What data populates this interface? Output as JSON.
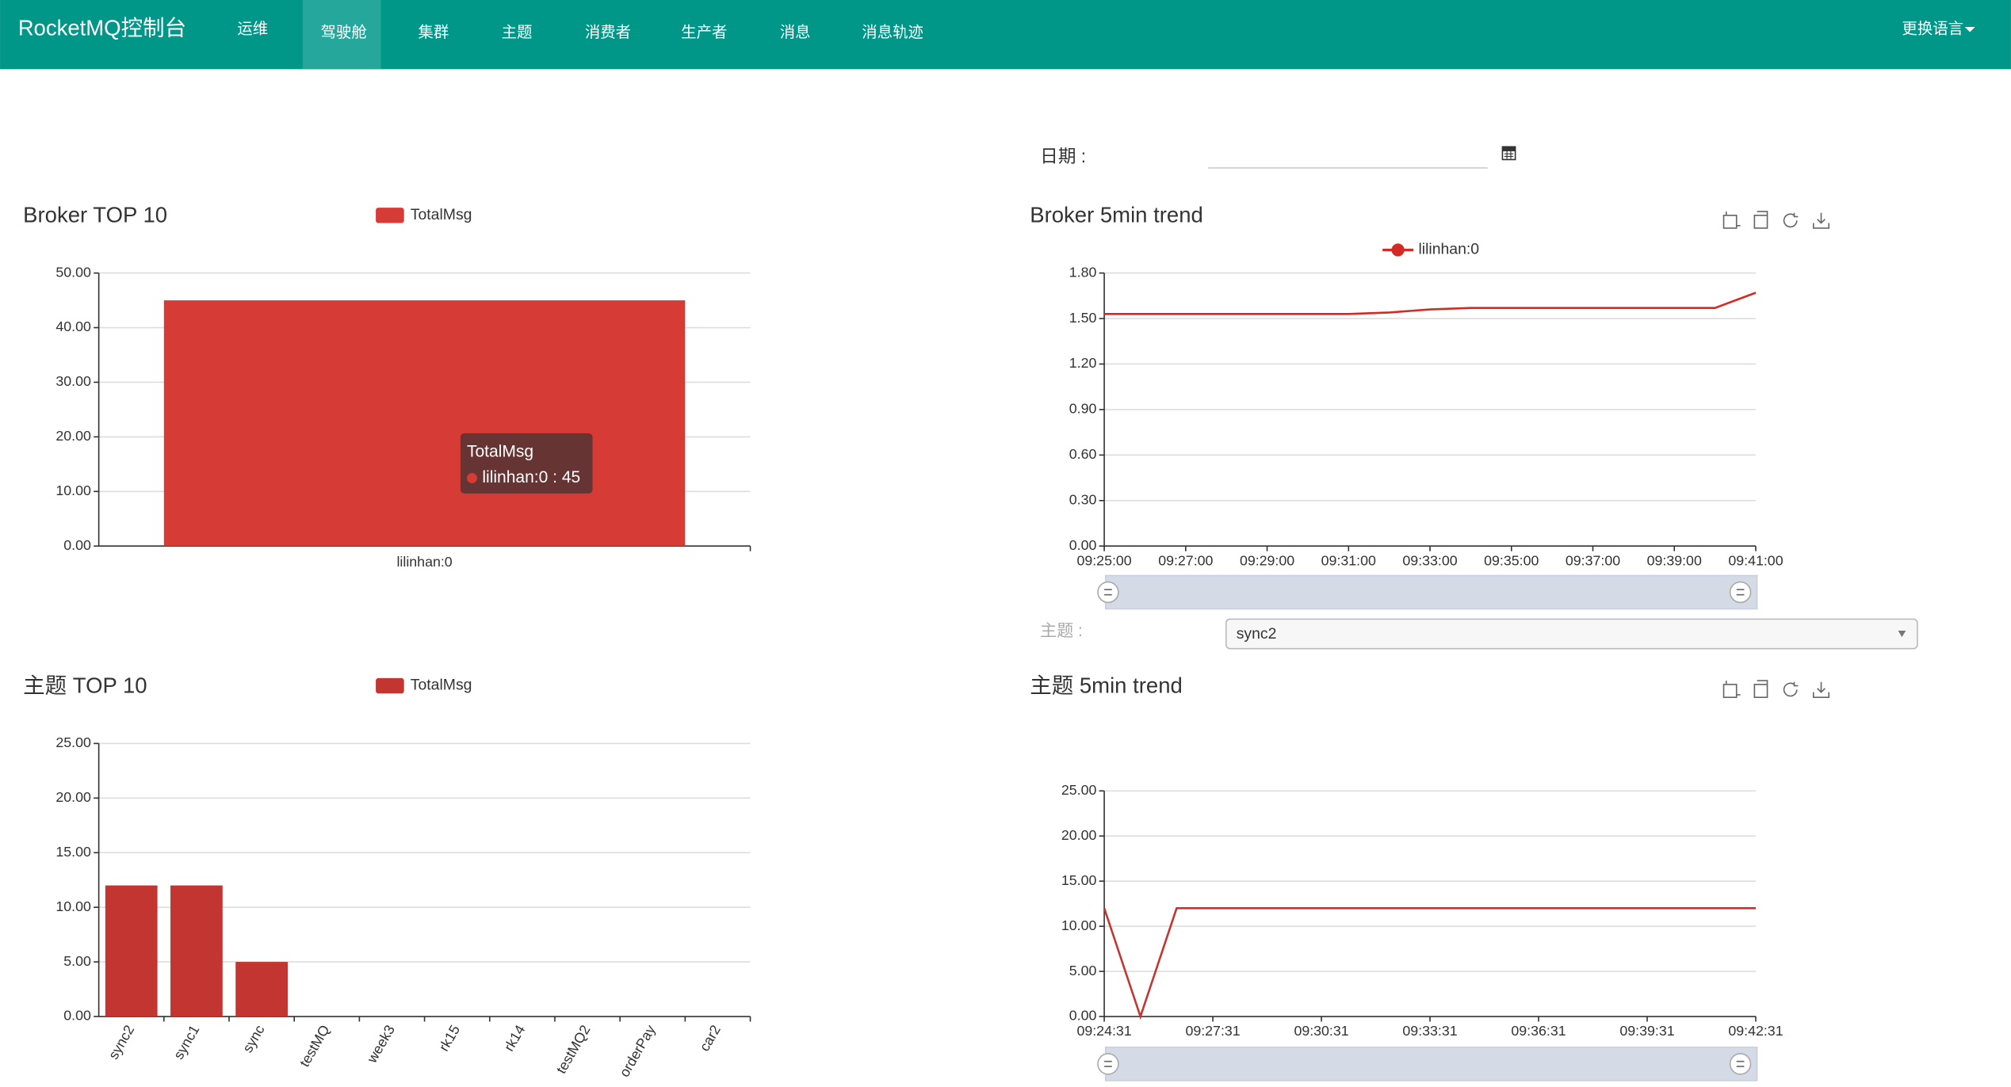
{
  "nav": {
    "brand": "RocketMQ控制台",
    "items": [
      "运维",
      "驾驶舱",
      "集群",
      "主题",
      "消费者",
      "生产者",
      "消息",
      "消息轨迹"
    ],
    "language": "更换语言"
  },
  "date_label": "日期 :",
  "topic_label": "主题 :",
  "topic_selected": "sync2",
  "tooltip": {
    "title": "TotalMsg",
    "text": "lilinhan:0 : 45"
  },
  "chart_data": [
    {
      "type": "bar",
      "title": "Broker TOP 10",
      "series": [
        {
          "name": "TotalMsg",
          "color": "#d63b35",
          "values": [
            45
          ]
        }
      ],
      "categories": [
        "lilinhan:0"
      ],
      "ylim": [
        0,
        50
      ],
      "yticks": [
        {
          "value": 0,
          "label": "0.00"
        },
        {
          "value": 10,
          "label": "10.00"
        },
        {
          "value": 20,
          "label": "20.00"
        },
        {
          "value": 30,
          "label": "30.00"
        },
        {
          "value": 40,
          "label": "40.00"
        },
        {
          "value": 50,
          "label": "50.00"
        }
      ],
      "grid": true
    },
    {
      "type": "line",
      "title": "Broker 5min trend",
      "series": [
        {
          "name": "lilinhan:0",
          "color": "#d42a24",
          "values": [
            1.53,
            1.53,
            1.53,
            1.53,
            1.53,
            1.53,
            1.53,
            1.54,
            1.56,
            1.57,
            1.57,
            1.57,
            1.57,
            1.57,
            1.57,
            1.57,
            1.67
          ]
        }
      ],
      "x": [
        "09:25:00",
        "09:26:00",
        "09:27:00",
        "09:28:00",
        "09:29:00",
        "09:30:00",
        "09:31:00",
        "09:32:00",
        "09:33:00",
        "09:34:00",
        "09:35:00",
        "09:36:00",
        "09:37:00",
        "09:38:00",
        "09:39:00",
        "09:40:00",
        "09:41:00"
      ],
      "xlim": [
        "09:25:00",
        "09:41:00"
      ],
      "xticks": [
        "09:25:00",
        "09:27:00",
        "09:29:00",
        "09:31:00",
        "09:33:00",
        "09:35:00",
        "09:37:00",
        "09:39:00",
        "09:41:00"
      ],
      "ylim": [
        0,
        1.8
      ],
      "yticks": [
        {
          "value": 0,
          "label": "0.00"
        },
        {
          "value": 0.3,
          "label": "0.30"
        },
        {
          "value": 0.6,
          "label": "0.60"
        },
        {
          "value": 0.9,
          "label": "0.90"
        },
        {
          "value": 1.2,
          "label": "1.20"
        },
        {
          "value": 1.5,
          "label": "1.50"
        },
        {
          "value": 1.8,
          "label": "1.80"
        }
      ],
      "grid": true
    },
    {
      "type": "bar",
      "title": "主题 TOP 10",
      "series": [
        {
          "name": "TotalMsg",
          "color": "#c23531",
          "values": [
            12,
            12,
            5,
            0,
            0,
            0,
            0,
            0,
            0,
            0
          ]
        }
      ],
      "categories": [
        "sync2",
        "sync1",
        "sync",
        "testMQ",
        "week3",
        "rk15",
        "rk14",
        "testMQ2",
        "orderPay",
        "car2"
      ],
      "ylim": [
        0,
        25
      ],
      "yticks": [
        {
          "value": 0,
          "label": "0.00"
        },
        {
          "value": 5,
          "label": "5.00"
        },
        {
          "value": 10,
          "label": "10.00"
        },
        {
          "value": 15,
          "label": "15.00"
        },
        {
          "value": 20,
          "label": "20.00"
        },
        {
          "value": 25,
          "label": "25.00"
        }
      ],
      "grid": true
    },
    {
      "type": "line",
      "title": "主题 5min trend",
      "series": [
        {
          "color": "#c23531",
          "values": [
            12,
            0,
            12,
            12,
            12,
            12,
            12,
            12,
            12,
            12,
            12,
            12,
            12,
            12,
            12,
            12,
            12,
            12,
            12
          ]
        }
      ],
      "x": [
        "09:24:31",
        "09:25:31",
        "09:26:31",
        "09:27:31",
        "09:28:31",
        "09:29:31",
        "09:30:31",
        "09:31:31",
        "09:32:31",
        "09:33:31",
        "09:34:31",
        "09:35:31",
        "09:36:31",
        "09:37:31",
        "09:38:31",
        "09:39:31",
        "09:40:31",
        "09:41:31",
        "09:42:31"
      ],
      "xlim": [
        "09:24:31",
        "09:42:31"
      ],
      "xticks": [
        "09:24:31",
        "09:27:31",
        "09:30:31",
        "09:33:31",
        "09:36:31",
        "09:39:31",
        "09:42:31"
      ],
      "ylim": [
        0,
        25
      ],
      "yticks": [
        {
          "value": 0,
          "label": "0.00"
        },
        {
          "value": 5,
          "label": "5.00"
        },
        {
          "value": 10,
          "label": "10.00"
        },
        {
          "value": 15,
          "label": "15.00"
        },
        {
          "value": 20,
          "label": "20.00"
        },
        {
          "value": 25,
          "label": "25.00"
        }
      ],
      "grid": true
    }
  ]
}
